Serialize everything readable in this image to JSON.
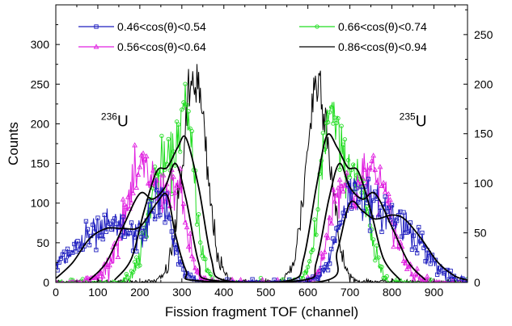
{
  "chart_data": {
    "type": "line",
    "xlabel": "Fission fragment TOF (channel)",
    "ylabel": "Counts",
    "xlim": [
      0,
      980
    ],
    "ylim": [
      0,
      350
    ],
    "y2lim": [
      0,
      280
    ],
    "xticks": [
      0,
      100,
      200,
      300,
      400,
      500,
      600,
      700,
      800,
      900
    ],
    "yticks": [
      0,
      50,
      100,
      150,
      200,
      250,
      300
    ],
    "y2ticks": [
      0,
      50,
      100,
      150,
      200,
      250
    ],
    "grid": false,
    "legend_position": "top",
    "annotations": [
      {
        "base": "236",
        "symbol": "U",
        "x": 150,
        "y": 205
      },
      {
        "base": "235",
        "symbol": "U",
        "x": 860,
        "y": 205
      }
    ],
    "series": [
      {
        "name": "0.46<cos(θ)<0.54",
        "color": "#1f1fbf",
        "marker": "square",
        "peaks": [
          {
            "center": 80,
            "sigma": 60,
            "amp": 48
          },
          {
            "center": 165,
            "sigma": 45,
            "amp": 45
          },
          {
            "center": 250,
            "sigma": 28,
            "amp": 95
          },
          {
            "center": 700,
            "sigma": 32,
            "amp": 95
          },
          {
            "center": 760,
            "sigma": 35,
            "amp": 55
          },
          {
            "center": 830,
            "sigma": 50,
            "amp": 65
          }
        ],
        "fit": [
          [
            0,
            5
          ],
          [
            40,
            25
          ],
          [
            80,
            55
          ],
          [
            120,
            68
          ],
          [
            160,
            68
          ],
          [
            200,
            70
          ],
          [
            240,
            100
          ],
          [
            265,
            110
          ],
          [
            285,
            60
          ],
          [
            310,
            15
          ],
          [
            340,
            2
          ],
          [
            640,
            2
          ],
          [
            670,
            40
          ],
          [
            700,
            100
          ],
          [
            730,
            90
          ],
          [
            760,
            80
          ],
          [
            800,
            85
          ],
          [
            830,
            80
          ],
          [
            870,
            55
          ],
          [
            910,
            25
          ],
          [
            950,
            8
          ],
          [
            980,
            3
          ]
        ]
      },
      {
        "name": "0.56<cos(θ)<0.64",
        "color": "#e020e0",
        "marker": "triangle",
        "peaks": [
          {
            "center": 210,
            "sigma": 45,
            "amp": 140
          },
          {
            "center": 290,
            "sigma": 22,
            "amp": 90
          },
          {
            "center": 670,
            "sigma": 22,
            "amp": 90
          },
          {
            "center": 750,
            "sigma": 45,
            "amp": 140
          }
        ],
        "fit": [
          [
            80,
            3
          ],
          [
            120,
            25
          ],
          [
            160,
            70
          ],
          [
            200,
            112
          ],
          [
            230,
            105
          ],
          [
            260,
            120
          ],
          [
            285,
            150
          ],
          [
            310,
            105
          ],
          [
            340,
            25
          ],
          [
            370,
            3
          ],
          [
            590,
            3
          ],
          [
            620,
            25
          ],
          [
            650,
            105
          ],
          [
            675,
            150
          ],
          [
            700,
            120
          ],
          [
            730,
            105
          ],
          [
            760,
            112
          ],
          [
            800,
            70
          ],
          [
            840,
            25
          ],
          [
            880,
            3
          ]
        ]
      },
      {
        "name": "0.66<cos(θ)<0.74",
        "color": "#22dd22",
        "marker": "circle",
        "peaks": [
          {
            "center": 250,
            "sigma": 30,
            "amp": 140
          },
          {
            "center": 310,
            "sigma": 22,
            "amp": 190
          },
          {
            "center": 650,
            "sigma": 22,
            "amp": 190
          },
          {
            "center": 710,
            "sigma": 30,
            "amp": 140
          }
        ],
        "fit": [
          [
            140,
            3
          ],
          [
            180,
            30
          ],
          [
            210,
            90
          ],
          [
            240,
            140
          ],
          [
            265,
            145
          ],
          [
            290,
            170
          ],
          [
            310,
            182
          ],
          [
            340,
            120
          ],
          [
            370,
            30
          ],
          [
            400,
            3
          ],
          [
            560,
            3
          ],
          [
            590,
            30
          ],
          [
            620,
            120
          ],
          [
            645,
            185
          ],
          [
            670,
            170
          ],
          [
            695,
            145
          ],
          [
            720,
            140
          ],
          [
            750,
            90
          ],
          [
            780,
            30
          ],
          [
            820,
            3
          ]
        ]
      },
      {
        "name": "0.86<cos(θ)<0.94",
        "color": "#000000",
        "marker": "none",
        "peaks": [
          {
            "center": 330,
            "sigma": 28,
            "amp": 255
          },
          {
            "center": 625,
            "sigma": 28,
            "amp": 255
          }
        ],
        "fit": []
      }
    ]
  }
}
